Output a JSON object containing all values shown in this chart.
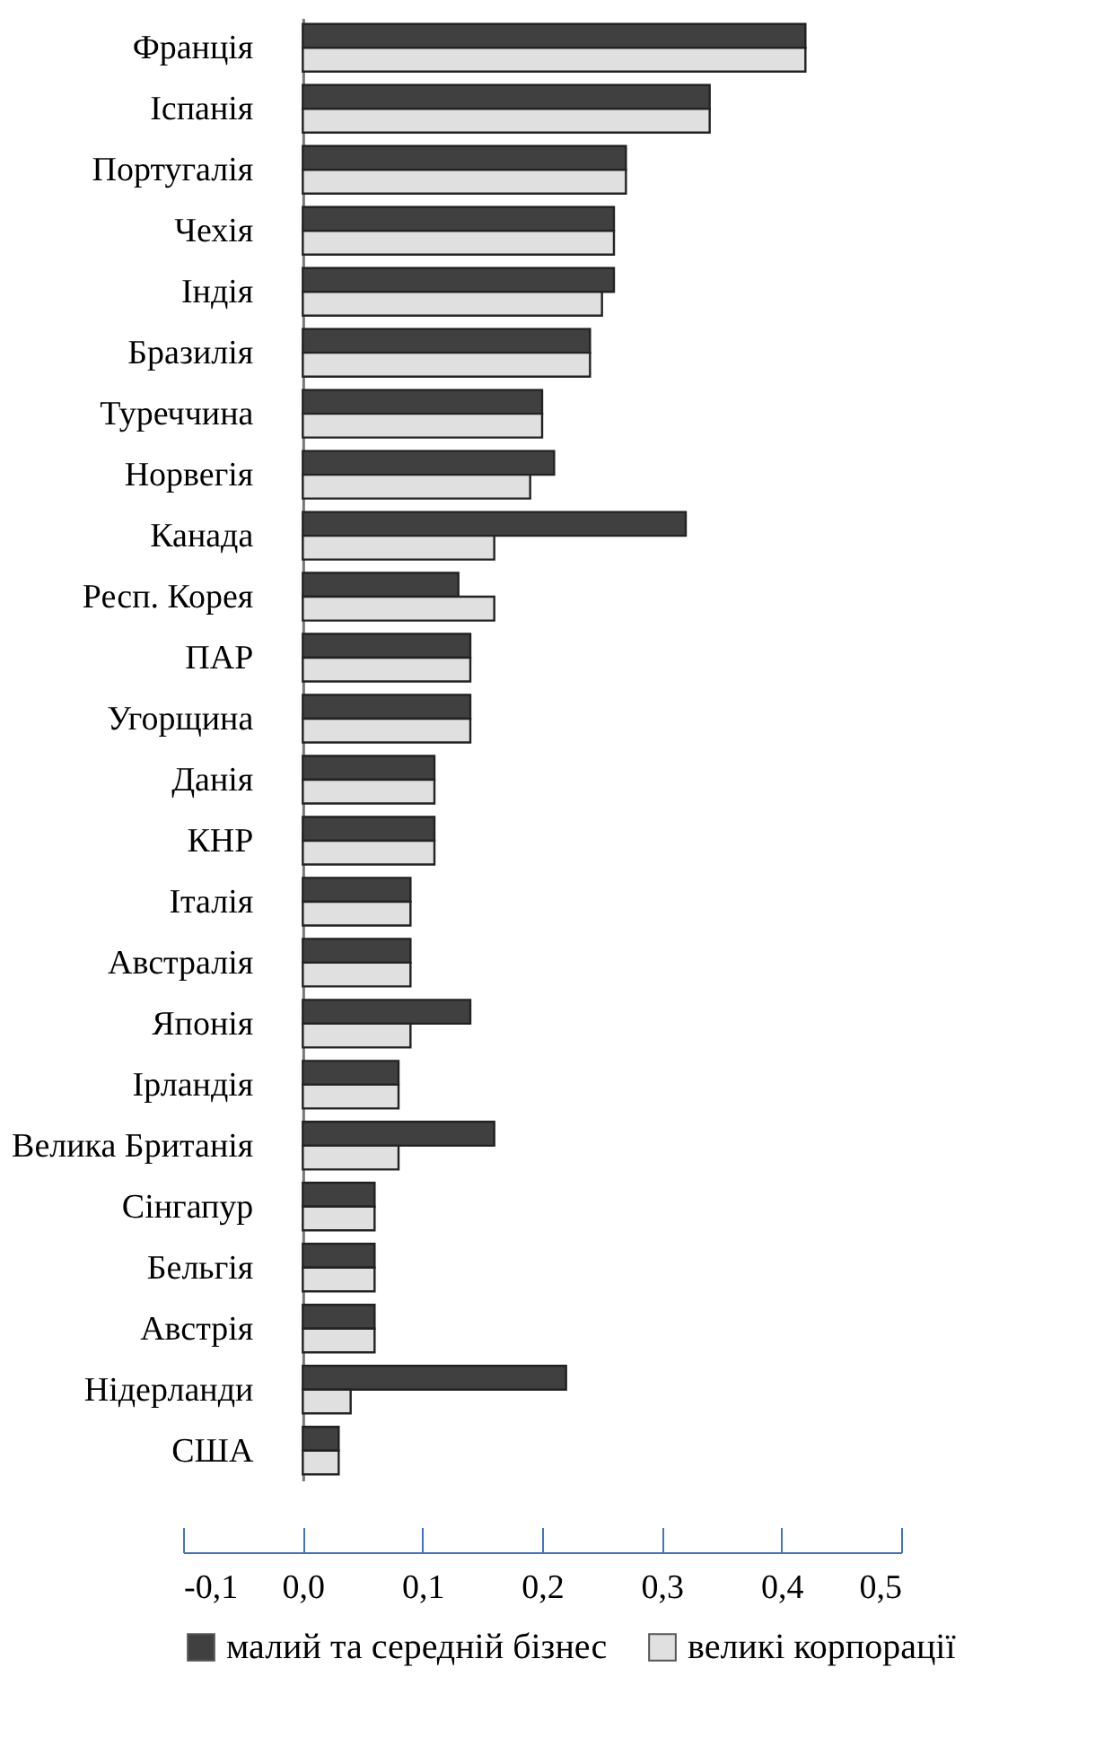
{
  "chart_data": {
    "type": "bar",
    "orientation": "horizontal",
    "categories": [
      "Франція",
      "Іспанія",
      "Португалія",
      "Чехія",
      "Індія",
      "Бразилія",
      "Туреччина",
      "Норвегія",
      "Канада",
      "Респ. Корея",
      "ПАР",
      "Угорщина",
      "Данія",
      "КНР",
      "Італія",
      "Австралія",
      "Японія",
      "Ірландія",
      "Велика Британія",
      "Сінгапур",
      "Бельгія",
      "Австрія",
      "Нідерланди",
      "США"
    ],
    "series": [
      {
        "name": "малий та середній бізнес",
        "color": "#404040",
        "values": [
          0.42,
          0.34,
          0.27,
          0.26,
          0.26,
          0.24,
          0.2,
          0.21,
          0.32,
          0.13,
          0.14,
          0.14,
          0.11,
          0.11,
          0.09,
          0.09,
          0.14,
          0.08,
          0.16,
          0.06,
          0.06,
          0.06,
          0.22,
          0.03
        ]
      },
      {
        "name": "великі корпорації",
        "color": "#e0e0e0",
        "values": [
          0.42,
          0.34,
          0.27,
          0.26,
          0.25,
          0.24,
          0.2,
          0.19,
          0.16,
          0.16,
          0.14,
          0.14,
          0.11,
          0.11,
          0.09,
          0.09,
          0.09,
          0.08,
          0.08,
          0.06,
          0.06,
          0.06,
          0.04,
          0.03
        ]
      }
    ],
    "xlim": [
      -0.1,
      0.5
    ],
    "xticks": [
      {
        "value": -0.1,
        "label": "-0,1"
      },
      {
        "value": 0,
        "label": "0,0"
      },
      {
        "value": 0.1,
        "label": "0,1"
      },
      {
        "value": 0.2,
        "label": "0,2"
      },
      {
        "value": 0.3,
        "label": "0,3"
      },
      {
        "value": 0.4,
        "label": "0,4"
      },
      {
        "value": 0.5,
        "label": "0,5"
      }
    ],
    "legend": "bottom"
  }
}
